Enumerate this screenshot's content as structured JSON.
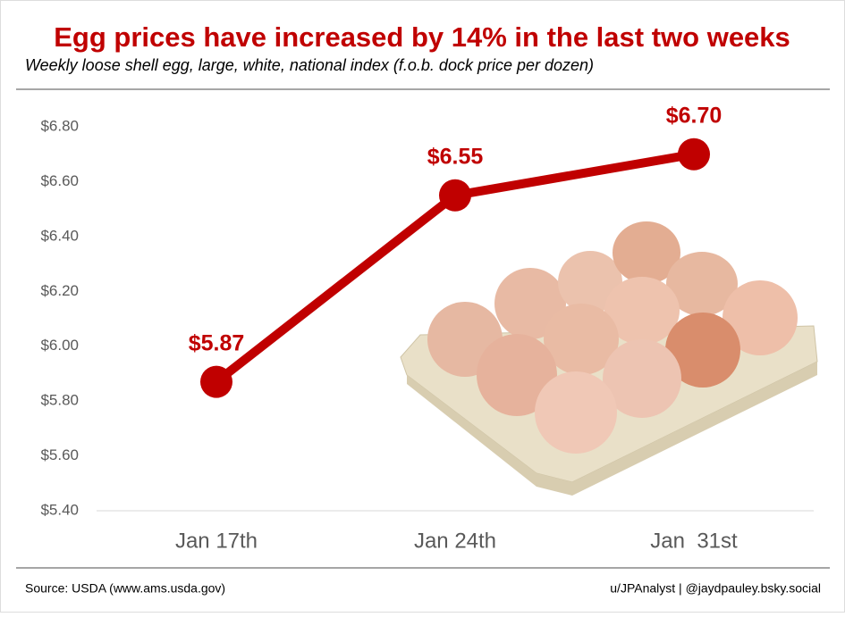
{
  "chart_data": {
    "type": "line",
    "title": "Egg prices have increased by 14% in the last two weeks",
    "subtitle": "Weekly loose shell egg, large, white, national index (f.o.b. dock price per dozen)",
    "categories": [
      "Jan 17th",
      "Jan 24th",
      "Jan  31st"
    ],
    "series": [
      {
        "name": "Egg price",
        "color": "#c00000",
        "values": [
          5.87,
          6.55,
          6.7
        ],
        "value_labels": [
          "$5.87",
          "$6.55",
          "$6.70"
        ]
      }
    ],
    "ylim": [
      5.4,
      6.8
    ],
    "yticks": [
      {
        "value": 5.4,
        "label": "$5.40"
      },
      {
        "value": 5.6,
        "label": "$5.60"
      },
      {
        "value": 5.8,
        "label": "$5.80"
      },
      {
        "value": 6.0,
        "label": "$6.00"
      },
      {
        "value": 6.2,
        "label": "$6.20"
      },
      {
        "value": 6.4,
        "label": "$6.40"
      },
      {
        "value": 6.6,
        "label": "$6.60"
      },
      {
        "value": 6.8,
        "label": "$6.80"
      }
    ],
    "grid": false,
    "source": "Source: USDA (www.ams.usda.gov)",
    "credit": "u/JPAnalyst | @jaydpauley.bsky.social"
  }
}
